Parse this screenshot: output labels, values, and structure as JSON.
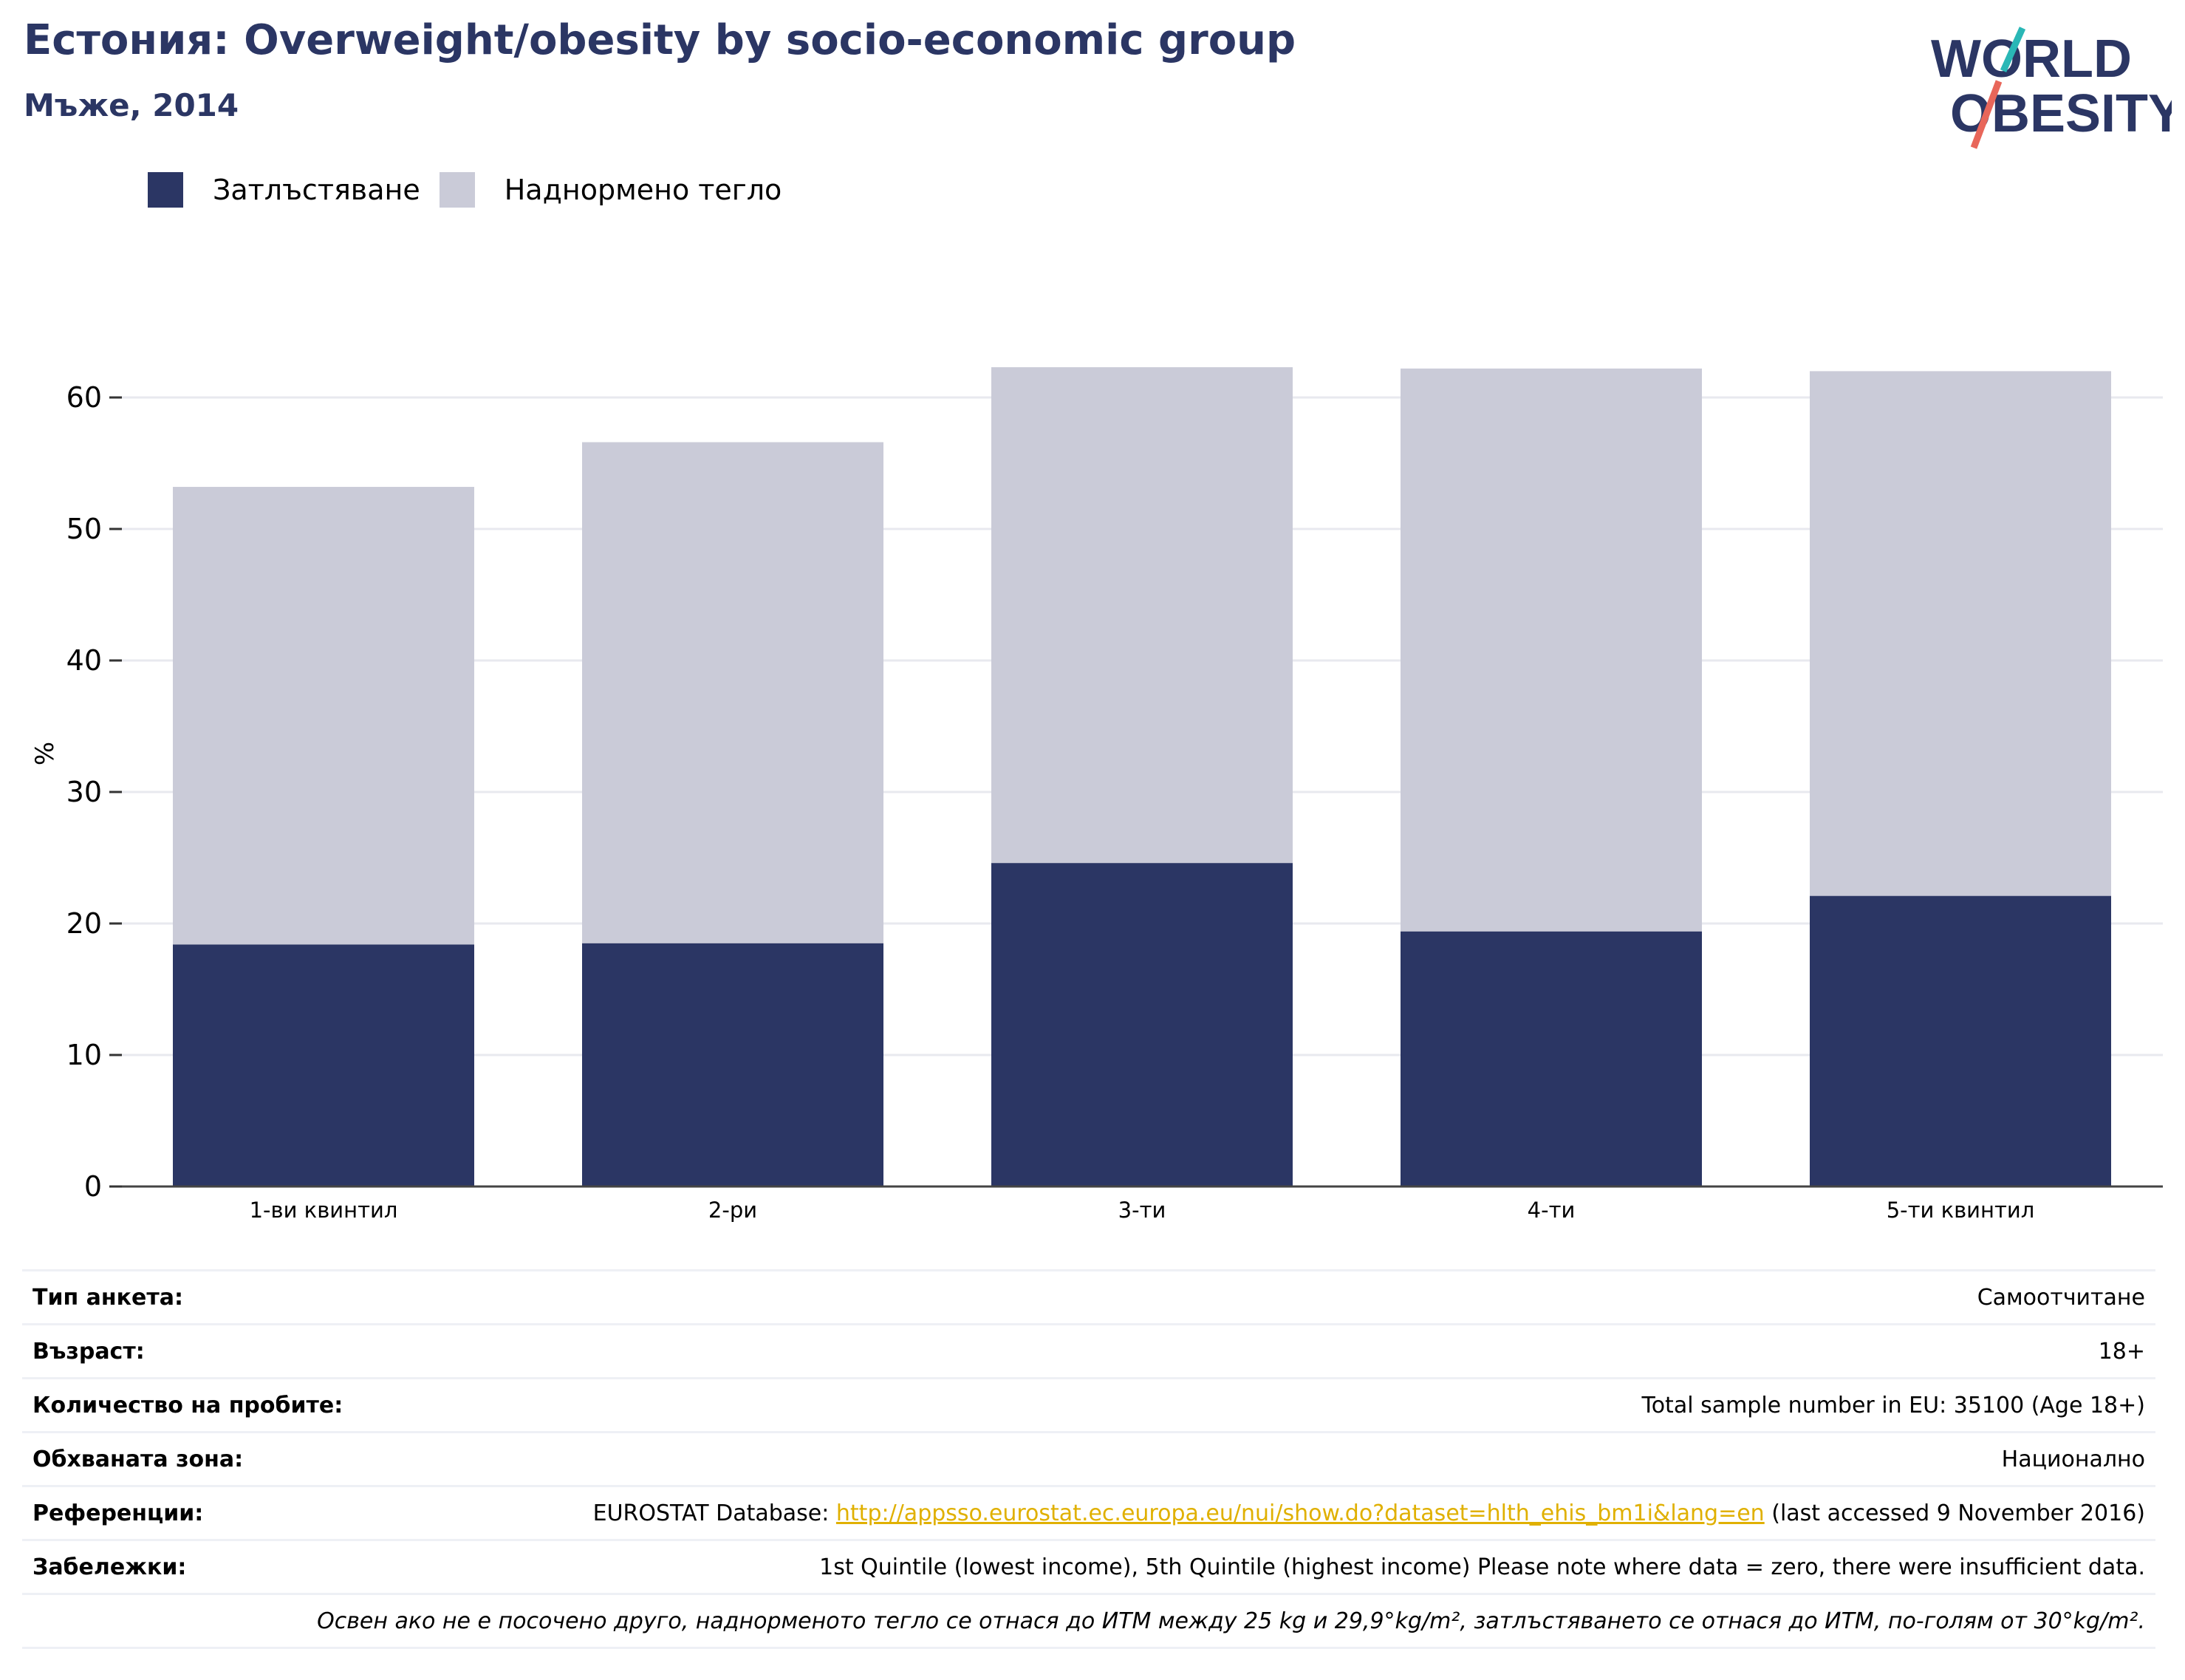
{
  "header": {
    "title": "Естония: Overweight/obesity by socio-economic group",
    "subtitle": "Мъже, 2014",
    "logo_line1": "WORLD",
    "logo_line2": "OBESITY"
  },
  "colors": {
    "obesity": "#2b3664",
    "overweight": "#cacbd8",
    "title": "#2b3664",
    "link": "#e0b000",
    "logo_teal": "#2ab7b6",
    "logo_red": "#e8665a"
  },
  "chart_data": {
    "type": "bar",
    "stacked": true,
    "categories": [
      "1-ви квинтил",
      "2-ри",
      "3-ти",
      "4-ти",
      "5-ти квинтил"
    ],
    "series": [
      {
        "name": "Затлъстяване",
        "values": [
          18.4,
          18.5,
          24.6,
          19.4,
          22.1
        ]
      },
      {
        "name": "Наднормено тегло",
        "values": [
          34.8,
          38.1,
          37.7,
          42.8,
          39.9
        ]
      }
    ],
    "totals": [
      53.2,
      56.6,
      62.3,
      62.2,
      62.0
    ],
    "ylabel": "%",
    "ylim": [
      0,
      67
    ],
    "yticks": [
      0,
      10,
      20,
      30,
      40,
      50,
      60
    ],
    "grid": true,
    "legend_position": "top-left"
  },
  "info": {
    "survey_type": {
      "label": "Тип анкета:",
      "value": "Самоотчитане"
    },
    "age": {
      "label": "Възраст:",
      "value": "18+"
    },
    "sample": {
      "label": "Количество на пробите:",
      "value": "Total sample number in EU: 35100 (Age 18+)"
    },
    "area": {
      "label": "Обхваната зона:",
      "value": "Национално"
    },
    "references": {
      "label": "Референции:",
      "prefix": "EUROSTAT Database: ",
      "link": "http://appsso.eurostat.ec.europa.eu/nui/show.do?dataset=hlth_ehis_bm1i&lang=en",
      "suffix": " (last accessed 9 November 2016)"
    },
    "notes": {
      "label": "Забележки:",
      "value": "1st Quintile (lowest income), 5th Quintile (highest income) Please note where data = zero, there were insufficient data."
    },
    "footnote": "Освен ако не е посочено друго, наднорменото тегло се отнася до ИТМ между 25 kg и 29,9°kg/m², затлъстяването се отнася до ИТМ, по-голям от 30°kg/m²."
  }
}
